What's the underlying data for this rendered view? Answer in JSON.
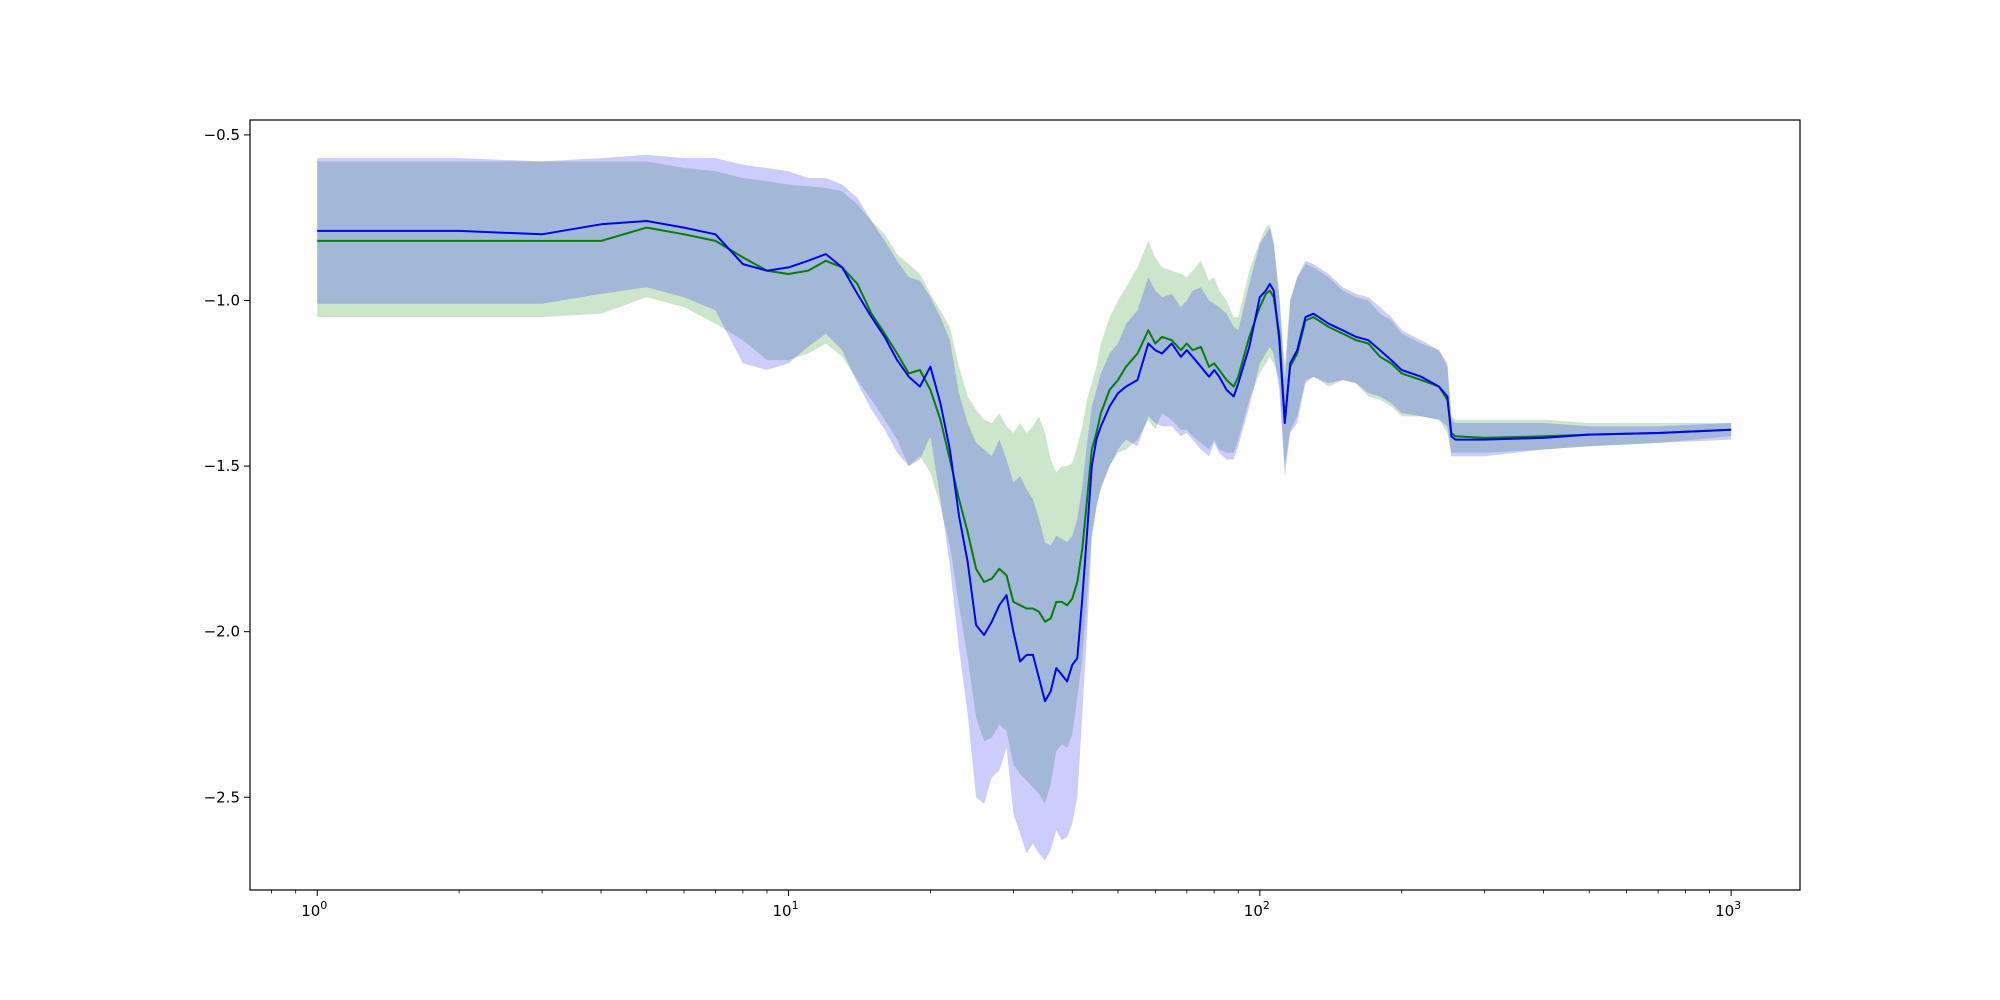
{
  "chart_data": {
    "type": "line",
    "title": "",
    "xlabel": "",
    "ylabel": "",
    "x_scale": "log",
    "xlim": [
      0.72,
      1400
    ],
    "ylim": [
      -2.78,
      -0.455
    ],
    "grid": false,
    "legend": "none",
    "x_ticks": [
      {
        "value": 1,
        "label": "10",
        "exp": "0"
      },
      {
        "value": 10,
        "label": "10",
        "exp": "1"
      },
      {
        "value": 100,
        "label": "10",
        "exp": "2"
      },
      {
        "value": 1000,
        "label": "10",
        "exp": "3"
      }
    ],
    "y_ticks": [
      {
        "value": -0.5,
        "label": "−0.5"
      },
      {
        "value": -1.0,
        "label": "−1.0"
      },
      {
        "value": -1.5,
        "label": "−1.5"
      },
      {
        "value": -2.0,
        "label": "−2.0"
      },
      {
        "value": -2.5,
        "label": "−2.5"
      }
    ],
    "x": [
      1,
      2,
      3,
      4,
      5,
      6,
      7,
      8,
      9,
      10,
      11,
      12,
      13,
      14,
      15,
      16,
      17,
      18,
      19,
      20,
      21,
      22,
      23,
      24,
      25,
      26,
      27,
      28,
      29,
      30,
      31,
      32,
      33,
      34,
      35,
      36,
      37,
      38,
      39,
      40,
      41,
      42,
      43,
      44,
      45,
      46,
      48,
      50,
      52,
      55,
      58,
      60,
      62,
      65,
      68,
      70,
      72,
      75,
      78,
      80,
      82,
      85,
      88,
      90,
      95,
      100,
      103,
      105,
      107,
      110,
      113,
      116,
      120,
      125,
      130,
      140,
      150,
      160,
      170,
      180,
      190,
      200,
      220,
      240,
      250,
      255,
      260,
      300,
      400,
      500,
      700,
      1000
    ],
    "series": [
      {
        "color": "#008000",
        "band_color": "#008000",
        "values": [
          -0.82,
          -0.82,
          -0.82,
          -0.82,
          -0.78,
          -0.8,
          -0.82,
          -0.87,
          -0.91,
          -0.92,
          -0.91,
          -0.88,
          -0.9,
          -0.95,
          -1.04,
          -1.1,
          -1.16,
          -1.22,
          -1.21,
          -1.27,
          -1.36,
          -1.48,
          -1.6,
          -1.7,
          -1.81,
          -1.85,
          -1.84,
          -1.81,
          -1.83,
          -1.91,
          -1.92,
          -1.93,
          -1.93,
          -1.94,
          -1.97,
          -1.96,
          -1.91,
          -1.91,
          -1.92,
          -1.9,
          -1.85,
          -1.75,
          -1.6,
          -1.45,
          -1.4,
          -1.34,
          -1.27,
          -1.24,
          -1.2,
          -1.16,
          -1.09,
          -1.13,
          -1.11,
          -1.12,
          -1.15,
          -1.13,
          -1.15,
          -1.14,
          -1.2,
          -1.19,
          -1.21,
          -1.24,
          -1.26,
          -1.23,
          -1.11,
          -1.02,
          -0.98,
          -0.97,
          -0.99,
          -1.1,
          -1.36,
          -1.2,
          -1.16,
          -1.06,
          -1.05,
          -1.08,
          -1.1,
          -1.12,
          -1.13,
          -1.17,
          -1.19,
          -1.22,
          -1.24,
          -1.26,
          -1.3,
          -1.4,
          -1.41,
          -1.415,
          -1.41,
          -1.405,
          -1.4,
          -1.39
        ],
        "upper": [
          -0.58,
          -0.58,
          -0.58,
          -0.58,
          -0.58,
          -0.6,
          -0.61,
          -0.63,
          -0.64,
          -0.65,
          -0.655,
          -0.66,
          -0.67,
          -0.71,
          -0.76,
          -0.8,
          -0.86,
          -0.89,
          -0.92,
          -0.98,
          -1.03,
          -1.08,
          -1.2,
          -1.29,
          -1.33,
          -1.36,
          -1.37,
          -1.34,
          -1.38,
          -1.4,
          -1.37,
          -1.4,
          -1.38,
          -1.35,
          -1.4,
          -1.48,
          -1.52,
          -1.5,
          -1.5,
          -1.49,
          -1.44,
          -1.38,
          -1.3,
          -1.25,
          -1.2,
          -1.13,
          -1.05,
          -1.0,
          -0.96,
          -0.9,
          -0.82,
          -0.87,
          -0.9,
          -0.91,
          -0.92,
          -0.93,
          -0.91,
          -0.88,
          -0.94,
          -0.93,
          -0.97,
          -1.0,
          -1.05,
          -1.05,
          -0.91,
          -0.82,
          -0.78,
          -0.77,
          -0.82,
          -0.98,
          -1.2,
          -1.0,
          -0.93,
          -0.89,
          -0.9,
          -0.93,
          -0.97,
          -0.99,
          -1.0,
          -1.04,
          -1.06,
          -1.1,
          -1.13,
          -1.15,
          -1.2,
          -1.35,
          -1.36,
          -1.36,
          -1.36,
          -1.37,
          -1.37,
          -1.37
        ],
        "lower": [
          -1.05,
          -1.05,
          -1.05,
          -1.04,
          -0.99,
          -1.02,
          -1.07,
          -1.12,
          -1.18,
          -1.18,
          -1.16,
          -1.13,
          -1.17,
          -1.24,
          -1.3,
          -1.36,
          -1.42,
          -1.5,
          -1.47,
          -1.52,
          -1.62,
          -1.74,
          -1.92,
          -2.08,
          -2.26,
          -2.33,
          -2.32,
          -2.28,
          -2.3,
          -2.4,
          -2.43,
          -2.45,
          -2.47,
          -2.49,
          -2.52,
          -2.46,
          -2.36,
          -2.34,
          -2.35,
          -2.31,
          -2.2,
          -2.08,
          -1.9,
          -1.7,
          -1.63,
          -1.56,
          -1.5,
          -1.46,
          -1.45,
          -1.42,
          -1.36,
          -1.39,
          -1.34,
          -1.36,
          -1.39,
          -1.39,
          -1.41,
          -1.43,
          -1.45,
          -1.42,
          -1.45,
          -1.46,
          -1.46,
          -1.42,
          -1.3,
          -1.22,
          -1.19,
          -1.17,
          -1.19,
          -1.24,
          -1.5,
          -1.39,
          -1.35,
          -1.24,
          -1.23,
          -1.26,
          -1.24,
          -1.25,
          -1.29,
          -1.3,
          -1.32,
          -1.35,
          -1.35,
          -1.36,
          -1.4,
          -1.46,
          -1.46,
          -1.46,
          -1.45,
          -1.44,
          -1.43,
          -1.41
        ]
      },
      {
        "color": "#0000ff",
        "band_color": "#0000ff",
        "values": [
          -0.79,
          -0.79,
          -0.8,
          -0.77,
          -0.76,
          -0.78,
          -0.8,
          -0.89,
          -0.91,
          -0.9,
          -0.88,
          -0.86,
          -0.9,
          -0.98,
          -1.05,
          -1.11,
          -1.18,
          -1.23,
          -1.26,
          -1.2,
          -1.31,
          -1.45,
          -1.65,
          -1.79,
          -1.98,
          -2.01,
          -1.97,
          -1.92,
          -1.89,
          -2.0,
          -2.09,
          -2.07,
          -2.07,
          -2.14,
          -2.21,
          -2.18,
          -2.11,
          -2.13,
          -2.15,
          -2.1,
          -2.08,
          -1.9,
          -1.7,
          -1.5,
          -1.42,
          -1.38,
          -1.32,
          -1.28,
          -1.26,
          -1.24,
          -1.13,
          -1.15,
          -1.16,
          -1.13,
          -1.17,
          -1.15,
          -1.17,
          -1.2,
          -1.23,
          -1.21,
          -1.23,
          -1.27,
          -1.29,
          -1.25,
          -1.14,
          -0.99,
          -0.97,
          -0.95,
          -0.97,
          -1.12,
          -1.37,
          -1.19,
          -1.15,
          -1.05,
          -1.04,
          -1.07,
          -1.09,
          -1.11,
          -1.12,
          -1.15,
          -1.18,
          -1.21,
          -1.23,
          -1.26,
          -1.29,
          -1.41,
          -1.42,
          -1.42,
          -1.415,
          -1.405,
          -1.4,
          -1.39
        ],
        "upper": [
          -0.57,
          -0.57,
          -0.58,
          -0.57,
          -0.56,
          -0.57,
          -0.57,
          -0.59,
          -0.6,
          -0.61,
          -0.63,
          -0.63,
          -0.65,
          -0.69,
          -0.76,
          -0.82,
          -0.88,
          -0.93,
          -0.94,
          -0.99,
          -1.05,
          -1.12,
          -1.28,
          -1.37,
          -1.43,
          -1.45,
          -1.47,
          -1.42,
          -1.48,
          -1.55,
          -1.53,
          -1.57,
          -1.6,
          -1.66,
          -1.73,
          -1.74,
          -1.71,
          -1.72,
          -1.73,
          -1.71,
          -1.66,
          -1.56,
          -1.43,
          -1.32,
          -1.27,
          -1.22,
          -1.16,
          -1.13,
          -1.07,
          -1.03,
          -0.93,
          -0.97,
          -0.99,
          -0.98,
          -1.02,
          -1.0,
          -0.97,
          -0.96,
          -1.0,
          -1.01,
          -1.02,
          -1.04,
          -1.08,
          -1.09,
          -0.95,
          -0.83,
          -0.8,
          -0.78,
          -0.83,
          -0.99,
          -1.24,
          -1.0,
          -0.93,
          -0.88,
          -0.89,
          -0.92,
          -0.96,
          -0.98,
          -0.99,
          -1.02,
          -1.05,
          -1.09,
          -1.12,
          -1.15,
          -1.19,
          -1.36,
          -1.37,
          -1.37,
          -1.37,
          -1.38,
          -1.38,
          -1.37
        ],
        "lower": [
          -1.01,
          -1.01,
          -1.01,
          -0.98,
          -0.96,
          -0.99,
          -1.03,
          -1.19,
          -1.21,
          -1.19,
          -1.14,
          -1.1,
          -1.15,
          -1.25,
          -1.33,
          -1.39,
          -1.46,
          -1.5,
          -1.48,
          -1.41,
          -1.6,
          -1.8,
          -2.05,
          -2.25,
          -2.5,
          -2.52,
          -2.44,
          -2.42,
          -2.35,
          -2.55,
          -2.61,
          -2.67,
          -2.64,
          -2.67,
          -2.69,
          -2.66,
          -2.6,
          -2.63,
          -2.62,
          -2.58,
          -2.5,
          -2.25,
          -2.0,
          -1.72,
          -1.62,
          -1.57,
          -1.5,
          -1.45,
          -1.42,
          -1.44,
          -1.35,
          -1.37,
          -1.38,
          -1.38,
          -1.41,
          -1.4,
          -1.42,
          -1.45,
          -1.47,
          -1.43,
          -1.46,
          -1.48,
          -1.48,
          -1.44,
          -1.32,
          -1.19,
          -1.16,
          -1.14,
          -1.16,
          -1.27,
          -1.53,
          -1.4,
          -1.37,
          -1.25,
          -1.23,
          -1.25,
          -1.24,
          -1.25,
          -1.28,
          -1.29,
          -1.31,
          -1.34,
          -1.35,
          -1.36,
          -1.38,
          -1.47,
          -1.47,
          -1.47,
          -1.45,
          -1.44,
          -1.43,
          -1.42
        ]
      }
    ]
  }
}
